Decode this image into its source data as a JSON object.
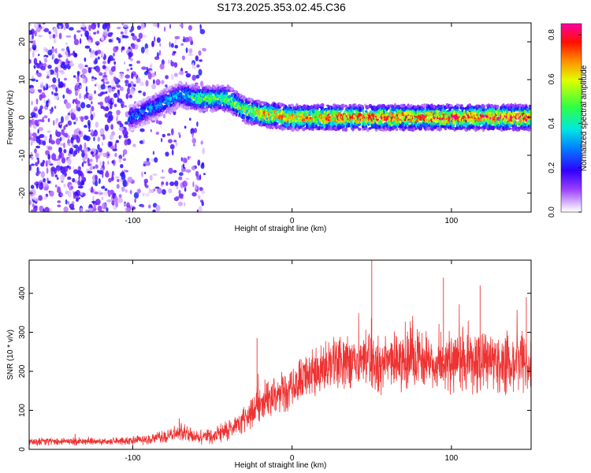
{
  "title": "S173.2025.353.02.45.C36",
  "chart_data": [
    {
      "type": "heatmap",
      "title": "S173.2025.353.02.45.C36",
      "xlabel": "Height of straight line (km)",
      "ylabel": "Frequency (Hz)",
      "xlim": [
        -165,
        150
      ],
      "ylim": [
        -25,
        25
      ],
      "xticks": [
        -100,
        0,
        100
      ],
      "xtick_labels": [
        "-100",
        "0",
        "100"
      ],
      "yticks": [
        -20,
        -10,
        0,
        10,
        20
      ],
      "ytick_labels": [
        "-20",
        "-10",
        "0",
        "10",
        "20"
      ],
      "colorbar": {
        "label": "Normalized spectral amplitude",
        "range": [
          0.0,
          0.85
        ],
        "ticks": [
          0.0,
          0.2,
          0.4,
          0.6,
          0.8
        ],
        "tick_labels": [
          "0.0",
          "0.2",
          "0.4",
          "0.6",
          "0.8"
        ]
      },
      "ridge": {
        "description": "dominant frequency track",
        "x": [
          -100,
          -90,
          -80,
          -70,
          -60,
          -50,
          -40,
          -30,
          -20,
          -10,
          0,
          25,
          50,
          75,
          100,
          125,
          150
        ],
        "y": [
          0,
          2,
          4,
          6,
          5,
          5,
          5,
          2,
          1,
          0.5,
          0,
          0,
          0,
          0,
          0,
          0,
          0
        ],
        "peak_amplitude": [
          0.3,
          0.35,
          0.35,
          0.35,
          0.5,
          0.55,
          0.55,
          0.6,
          0.7,
          0.75,
          0.75,
          0.8,
          0.8,
          0.8,
          0.85,
          0.85,
          0.85
        ]
      }
    },
    {
      "type": "line",
      "xlabel": "Height of straight line (km)",
      "ylabel": "SNR (10 * v/v)",
      "xlim": [
        -165,
        150
      ],
      "ylim": [
        0,
        485
      ],
      "xticks": [
        -100,
        0,
        100
      ],
      "xtick_labels": [
        "-100",
        "0",
        "100"
      ],
      "yticks": [
        0,
        100,
        200,
        300,
        400
      ],
      "ytick_labels": [
        "0",
        "100",
        "200",
        "300",
        "400"
      ],
      "series": [
        {
          "name": "SNR",
          "color": "#ee3333",
          "x": [
            -165,
            -140,
            -120,
            -100,
            -90,
            -80,
            -70,
            -60,
            -50,
            -40,
            -35,
            -30,
            -25,
            -20,
            -15,
            -10,
            -5,
            0,
            10,
            20,
            30,
            40,
            50,
            60,
            75,
            90,
            100,
            110,
            125,
            140,
            150
          ],
          "values": [
            20,
            20,
            20,
            22,
            25,
            30,
            45,
            35,
            30,
            50,
            60,
            75,
            95,
            115,
            130,
            140,
            150,
            160,
            185,
            205,
            215,
            220,
            222,
            225,
            225,
            225,
            228,
            225,
            225,
            220,
            220
          ],
          "spread": [
            12,
            12,
            12,
            14,
            16,
            20,
            28,
            22,
            24,
            32,
            38,
            45,
            55,
            60,
            62,
            64,
            66,
            68,
            75,
            80,
            85,
            90,
            95,
            95,
            95,
            95,
            95,
            95,
            95,
            90,
            90
          ],
          "spikes": [
            {
              "x": 50,
              "y": 485
            },
            {
              "x": 95,
              "y": 440
            },
            {
              "x": 118,
              "y": 420
            },
            {
              "x": 147,
              "y": 390
            },
            {
              "x": -22,
              "y": 285
            }
          ]
        }
      ]
    }
  ]
}
